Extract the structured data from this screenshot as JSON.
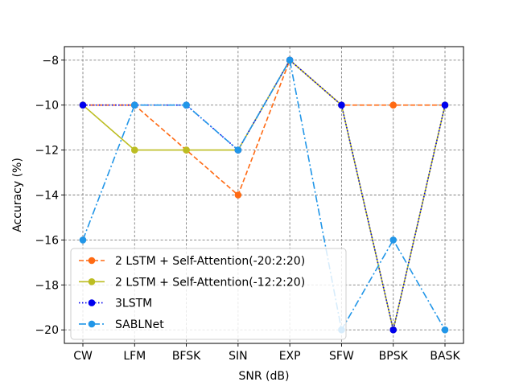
{
  "chart_data": {
    "type": "line",
    "title": "",
    "xlabel": "SNR (dB)",
    "ylabel": "Accuracy (%)",
    "categories": [
      "CW",
      "LFM",
      "BFSK",
      "SIN",
      "EXP",
      "SFW",
      "BPSK",
      "BASK"
    ],
    "ylim": [
      -20.6,
      -7.4
    ],
    "yticks": [
      -8,
      -10,
      -12,
      -14,
      -16,
      -18,
      -20
    ],
    "ytick_labels": [
      "−8",
      "−10",
      "−12",
      "−14",
      "−16",
      "−18",
      "−20"
    ],
    "grid": true,
    "legend_position": "lower-left",
    "series": [
      {
        "name": "2 LSTM + Self-Attention(-20:2:20)",
        "values": [
          -10,
          -10,
          -12,
          -14,
          -8,
          -10,
          -10,
          -10
        ],
        "color": "#ff6a13",
        "dash": "dashed"
      },
      {
        "name": "2 LSTM + Self-Attention(-12:2:20)",
        "values": [
          -10,
          -12,
          -12,
          -12,
          -8,
          -10,
          -20,
          -10
        ],
        "color": "#bcbd22",
        "dash": "solid"
      },
      {
        "name": "3LSTM",
        "values": [
          -10,
          -10,
          -10,
          -12,
          -8,
          -10,
          -20,
          -10
        ],
        "color": "#0000ee",
        "dash": "dotted"
      },
      {
        "name": "SABLNet",
        "values": [
          -16,
          -10,
          -10,
          -12,
          -8,
          -20,
          -16,
          -20
        ],
        "color": "#2196e8",
        "dash": "dashdot"
      }
    ]
  }
}
